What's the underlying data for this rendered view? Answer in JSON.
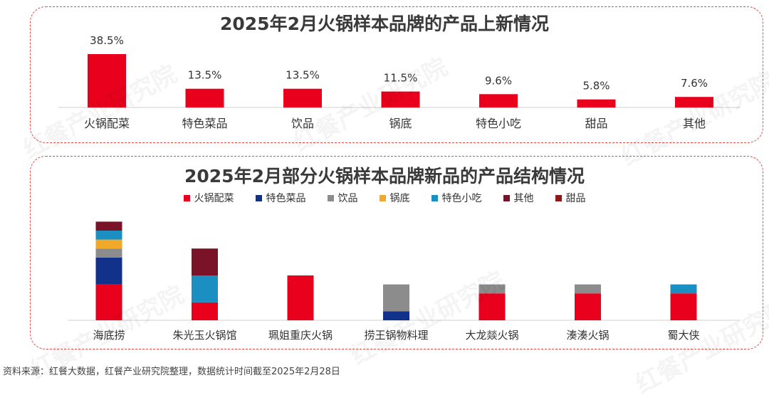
{
  "source_note": "资料来源：红餐大数据，红餐产业研究院整理，数据统计时间截至2025年2月28日",
  "watermark": "红餐产业研究院",
  "colors": {
    "accent": "#e8001c",
    "panel_border": "#e84a4a"
  },
  "chart_data": [
    {
      "type": "bar",
      "title": "2025年2月火锅样本品牌的产品上新情况",
      "categories": [
        "火锅配菜",
        "特色菜品",
        "饮品",
        "锅底",
        "特色小吃",
        "甜品",
        "其他"
      ],
      "values": [
        38.5,
        13.5,
        13.5,
        11.5,
        9.6,
        5.8,
        7.6
      ],
      "data_labels": [
        "38.5%",
        "13.5%",
        "13.5%",
        "11.5%",
        "9.6%",
        "5.8%",
        "7.6%"
      ],
      "unit": "%",
      "color": "#e8001c",
      "ylim": [
        0,
        40
      ]
    },
    {
      "type": "bar",
      "stacked": true,
      "title": "2025年2月部分火锅样本品牌新品的产品结构情况",
      "categories": [
        "海底捞",
        "朱光玉火锅馆",
        "珮姐重庆火锅",
        "捞王锅物料理",
        "大龙燚火锅",
        "湊湊火锅",
        "蜀大侠"
      ],
      "legend_position": "top",
      "series": [
        {
          "name": "火锅配菜",
          "color": "#e8001c",
          "values": [
            4,
            2,
            5,
            0,
            3,
            3,
            3
          ]
        },
        {
          "name": "特色菜品",
          "color": "#11318a",
          "values": [
            3,
            0,
            0,
            1,
            0,
            0,
            0
          ]
        },
        {
          "name": "饮品",
          "color": "#8c8c8c",
          "values": [
            1,
            0,
            0,
            3,
            1,
            1,
            0
          ]
        },
        {
          "name": "锅底",
          "color": "#f0a928",
          "values": [
            1,
            0,
            0,
            0,
            0,
            0,
            0
          ]
        },
        {
          "name": "特色小吃",
          "color": "#1b8ec2",
          "values": [
            1,
            3,
            0,
            0,
            0,
            0,
            1
          ]
        },
        {
          "name": "其他",
          "color": "#7a1228",
          "values": [
            1,
            3,
            0,
            0,
            0,
            0,
            0
          ]
        },
        {
          "name": "甜品",
          "color": "#8a1a1a",
          "values": [
            0,
            0,
            0,
            0,
            0,
            0,
            0
          ]
        }
      ],
      "legend_order": [
        "火锅配菜",
        "特色菜品",
        "饮品",
        "锅底",
        "特色小吃",
        "其他",
        "甜品"
      ]
    }
  ]
}
